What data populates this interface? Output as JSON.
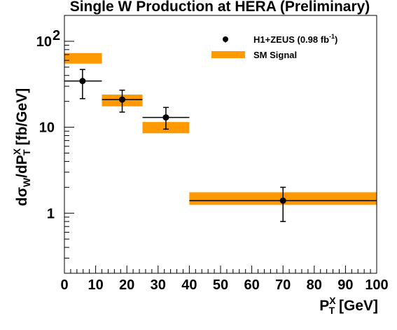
{
  "chart_data": {
    "type": "scatter",
    "title": "Single W Production at HERA (Preliminary)",
    "ylabel": {
      "a": "dσ",
      "b": "W",
      "c": "/dP",
      "d": "X",
      "e": "T",
      "f": " [fb/GeV]"
    },
    "xlabel": {
      "a": "P",
      "b": "X",
      "c": "T",
      "d": " [GeV]"
    },
    "xlim": [
      0,
      100
    ],
    "ylim": [
      0.2,
      200
    ],
    "y_scale": "log",
    "x_ticks": [
      "0",
      "10",
      "20",
      "30",
      "40",
      "50",
      "60",
      "70",
      "80",
      "90",
      "100"
    ],
    "y_ticks": [
      {
        "value": 1,
        "base": "1",
        "exp": ""
      },
      {
        "value": 10,
        "base": "10",
        "exp": ""
      },
      {
        "value": 100,
        "base": "10",
        "exp": "2"
      }
    ],
    "legend": {
      "placement": "top-right",
      "data_entry": {
        "a": "H1+ZEUS (0.98 fb",
        "b": "-1",
        "c": ")"
      },
      "band_entry": "SM Signal"
    },
    "colors": {
      "band": "#ff9900",
      "data": "#000000"
    },
    "series": [
      {
        "kind": "points",
        "points": [
          {
            "x": 5.8,
            "xlo": 0,
            "xhi": 12,
            "y": 34.5,
            "ylo": 21.5,
            "yhi": 47
          },
          {
            "x": 18.5,
            "xlo": 12,
            "xhi": 25,
            "y": 21,
            "ylo": 15,
            "yhi": 27
          },
          {
            "x": 32.5,
            "xlo": 25,
            "xhi": 40,
            "y": 13,
            "ylo": 9.5,
            "yhi": 17
          },
          {
            "x": 70,
            "xlo": 40,
            "xhi": 100,
            "y": 1.4,
            "ylo": 0.8,
            "yhi": 2
          }
        ]
      },
      {
        "kind": "band",
        "bins": [
          {
            "xlo": 0,
            "xhi": 12,
            "ylo": 55,
            "yhi": 73
          },
          {
            "xlo": 12,
            "xhi": 25,
            "ylo": 17.5,
            "yhi": 24
          },
          {
            "xlo": 25,
            "xhi": 40,
            "ylo": 8.5,
            "yhi": 11.5
          },
          {
            "xlo": 40,
            "xhi": 100,
            "ylo": 1.25,
            "yhi": 1.75
          }
        ]
      }
    ]
  }
}
